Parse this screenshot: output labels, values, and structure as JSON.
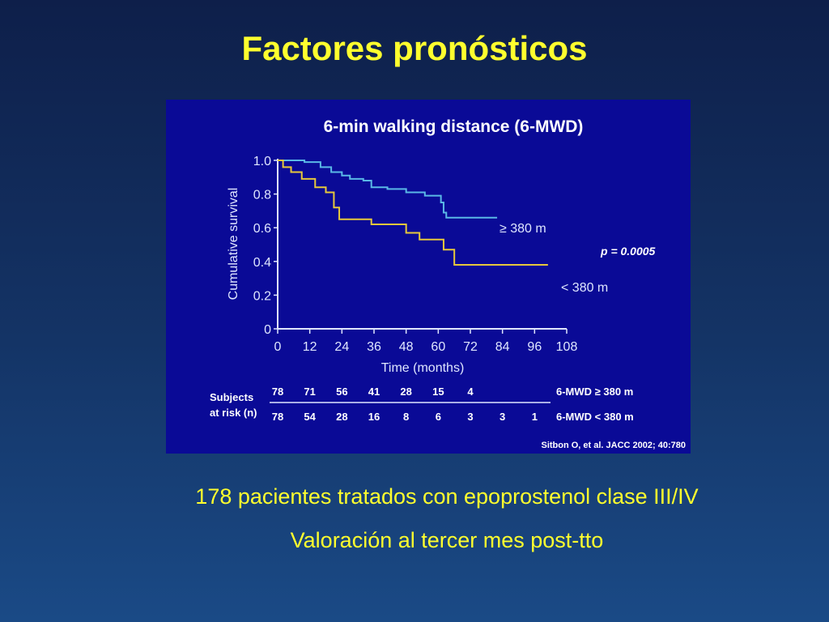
{
  "slide": {
    "title": "Factores pronósticos",
    "bullets": [
      "178 pacientes tratados con epoprostenol clase III/IV",
      "Valoración al tercer mes post-tto"
    ]
  },
  "chart_data": {
    "type": "line",
    "title": "6-min walking distance (6-MWD)",
    "xlabel": "Time (months)",
    "ylabel": "Cumulative survival",
    "xlim": [
      0,
      108
    ],
    "ylim": [
      0,
      1.0
    ],
    "x_ticks": [
      0,
      12,
      24,
      36,
      48,
      60,
      72,
      84,
      96,
      108
    ],
    "y_ticks": [
      0,
      0.2,
      0.4,
      0.6,
      0.8,
      1.0
    ],
    "y_tick_labels": [
      "0",
      "0.2",
      "0.4",
      "0.6",
      "0.8",
      "1.0"
    ],
    "series": [
      {
        "name": "≥ 380 m",
        "color": "#5ab8e6",
        "steps": [
          [
            0,
            1.0
          ],
          [
            10,
            0.99
          ],
          [
            16,
            0.96
          ],
          [
            20,
            0.93
          ],
          [
            24,
            0.91
          ],
          [
            27,
            0.89
          ],
          [
            32,
            0.88
          ],
          [
            35,
            0.84
          ],
          [
            41,
            0.83
          ],
          [
            48,
            0.81
          ],
          [
            55,
            0.79
          ],
          [
            61,
            0.75
          ],
          [
            62,
            0.69
          ],
          [
            63,
            0.66
          ],
          [
            82,
            0.66
          ]
        ]
      },
      {
        "name": "< 380 m",
        "color": "#e6c83c",
        "steps": [
          [
            0,
            1.0
          ],
          [
            2,
            0.96
          ],
          [
            5,
            0.93
          ],
          [
            9,
            0.89
          ],
          [
            14,
            0.84
          ],
          [
            18,
            0.81
          ],
          [
            21,
            0.72
          ],
          [
            23,
            0.65
          ],
          [
            35,
            0.62
          ],
          [
            48,
            0.57
          ],
          [
            53,
            0.53
          ],
          [
            62,
            0.47
          ],
          [
            66,
            0.38
          ],
          [
            101,
            0.38
          ]
        ]
      }
    ],
    "annotations": {
      "p_value": "p = 0.0005",
      "label_high": "≥ 380 m",
      "label_low": "< 380 m",
      "citation": "Sitbon O, et al. JACC 2002; 40:780"
    },
    "risk_table": {
      "header": [
        "Subjects",
        "at risk (n)"
      ],
      "rows": [
        {
          "label": "6-MWD ≥ 380 m",
          "values": [
            "78",
            "71",
            "56",
            "41",
            "28",
            "15",
            "4"
          ]
        },
        {
          "label": "6-MWD < 380 m",
          "values": [
            "78",
            "54",
            "28",
            "16",
            "8",
            "6",
            "3",
            "3",
            "1"
          ]
        }
      ]
    }
  }
}
